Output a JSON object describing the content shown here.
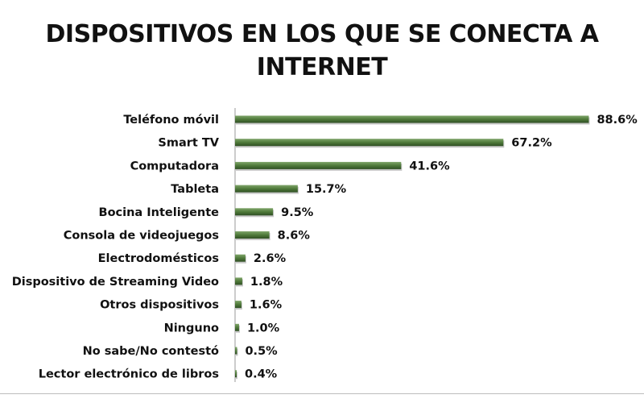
{
  "chart_data": {
    "type": "bar",
    "orientation": "horizontal",
    "title": "DISPOSITIVOS EN LOS QUE SE CONECTA A INTERNET",
    "title_lines": [
      "DISPOSITIVOS EN LOS QUE SE CONECTA A",
      "INTERNET"
    ],
    "categories": [
      "Teléfono móvil",
      "Smart TV",
      "Computadora",
      "Tableta",
      "Bocina Inteligente",
      "Consola de videojuegos",
      "Electrodomésticos",
      "Dispositivo de Streaming Video",
      "Otros dispositivos",
      "Ninguno",
      "No sabe/No contestó",
      "Lector electrónico de libros"
    ],
    "values": [
      88.6,
      67.2,
      41.6,
      15.7,
      9.5,
      8.6,
      2.6,
      1.8,
      1.6,
      1.0,
      0.5,
      0.4
    ],
    "value_labels": [
      "88.6%",
      "67.2%",
      "41.6%",
      "15.7%",
      "9.5%",
      "8.6%",
      "2.6%",
      "1.8%",
      "1.6%",
      "1.0%",
      "0.5%",
      "0.4%"
    ],
    "xlim": [
      0,
      100
    ],
    "xlabel": "",
    "ylabel": "",
    "grid": false,
    "legend": "none",
    "bar_color": "#4f7a3a",
    "bar_color_light": "#7fa56a",
    "bar_color_dark": "#2f4f24"
  }
}
